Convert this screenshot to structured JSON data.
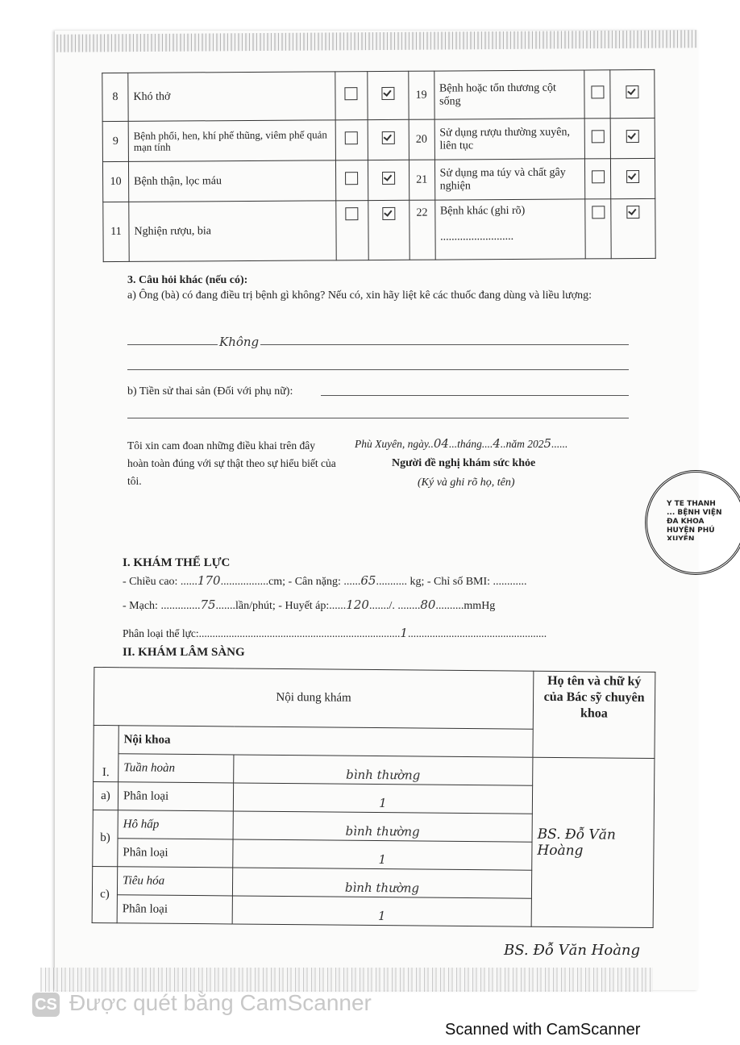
{
  "questionnaire_table": {
    "rows": [
      {
        "left": {
          "no": "8",
          "label": "Khó thở",
          "yes": false,
          "no_checked": true
        },
        "right": {
          "no": "19",
          "label": "Bệnh hoặc tổn thương cột sống",
          "yes": false,
          "no_checked": true
        }
      },
      {
        "left": {
          "no": "9",
          "label": "Bệnh phổi, hen, khí phế thũng, viêm phế quản mạn tính",
          "yes": false,
          "no_checked": true
        },
        "right": {
          "no": "20",
          "label": "Sử dụng rượu thường xuyên, liên tục",
          "yes": false,
          "no_checked": true
        }
      },
      {
        "left": {
          "no": "10",
          "label": "Bệnh thận, lọc máu",
          "yes": false,
          "no_checked": true
        },
        "right": {
          "no": "21",
          "label": "Sử dụng ma túy và chất gây nghiện",
          "yes": false,
          "no_checked": true
        }
      },
      {
        "left": {
          "no": "11",
          "label": "Nghiện rượu, bia",
          "yes": false,
          "no_checked": true
        },
        "right": {
          "no": "22",
          "label": "Bệnh khác (ghi rõ)",
          "detail": "..........................",
          "yes": false,
          "no_checked": true
        }
      }
    ]
  },
  "other_questions": {
    "heading": "3. Câu hỏi khác (nếu có):",
    "q_a": "a) Ông (bà) có đang điều trị bệnh gì không? Nếu có, xin hãy liệt kê các thuốc đang dùng và liều lượng:",
    "a_answer": "Không",
    "q_b": "b) Tiền sử thai sản (Đối với phụ nữ):"
  },
  "declaration": {
    "text": "Tôi xin cam đoan những điều khai trên đây hoàn toàn đúng với sự thật theo sự hiểu biết của tôi.",
    "place_prefix": "Phù Xuyên, ngày",
    "day": "04",
    "month_label": "tháng",
    "month": "4",
    "year_label": "năm 202",
    "year_digit": "5",
    "signer_title": "Người đề nghị khám sức khỏe",
    "signer_note": "(Ký và ghi rõ họ, tên)"
  },
  "stamp": {
    "text": "Y TẾ THÀNH ... BỆNH VIỆN ĐA KHOA HUYỆN PHÚ XUYÊN"
  },
  "physical_exam": {
    "heading": "I. KHÁM THỂ LỰC",
    "height_label": "- Chiều cao:",
    "height": "170",
    "height_unit": "cm; - Cân nặng:",
    "weight": "65",
    "weight_unit": "kg; - Chỉ số BMI:",
    "bmi": "............",
    "pulse_label": "- Mạch:",
    "pulse": "75",
    "pulse_unit": "lần/phút; - Huyết áp:",
    "bp_sys": "120",
    "bp_dia": "80",
    "bp_unit": "mmHg",
    "class_label": "Phân loại thể lực:",
    "class": "1"
  },
  "clinical_exam": {
    "heading": "II. KHÁM LÂM SÀNG",
    "col_content": "Nội dung khám",
    "col_doctor": "Họ tên và chữ ký của Bác sỹ chuyên khoa",
    "section_no": "I.",
    "section": "Nội khoa",
    "items": [
      {
        "letter": "a)",
        "name": "Tuần hoàn",
        "result": "bình thường",
        "class_label": "Phân loại",
        "class": "1"
      },
      {
        "letter": "b)",
        "name": "Hô hấp",
        "result": "bình thường",
        "class_label": "Phân loại",
        "class": "1"
      },
      {
        "letter": "c)",
        "name": "Tiêu hóa",
        "result": "bình thường",
        "class_label": "Phân loại",
        "class": "1"
      }
    ],
    "doctor_sig_1": "BS. Đỗ Văn Hoàng",
    "doctor_sig_2": "BS. Đỗ Văn Hoàng"
  },
  "watermark": "Được quét bằng CamScanner",
  "watermark_logo": "CS",
  "footer": "Scanned with CamScanner"
}
